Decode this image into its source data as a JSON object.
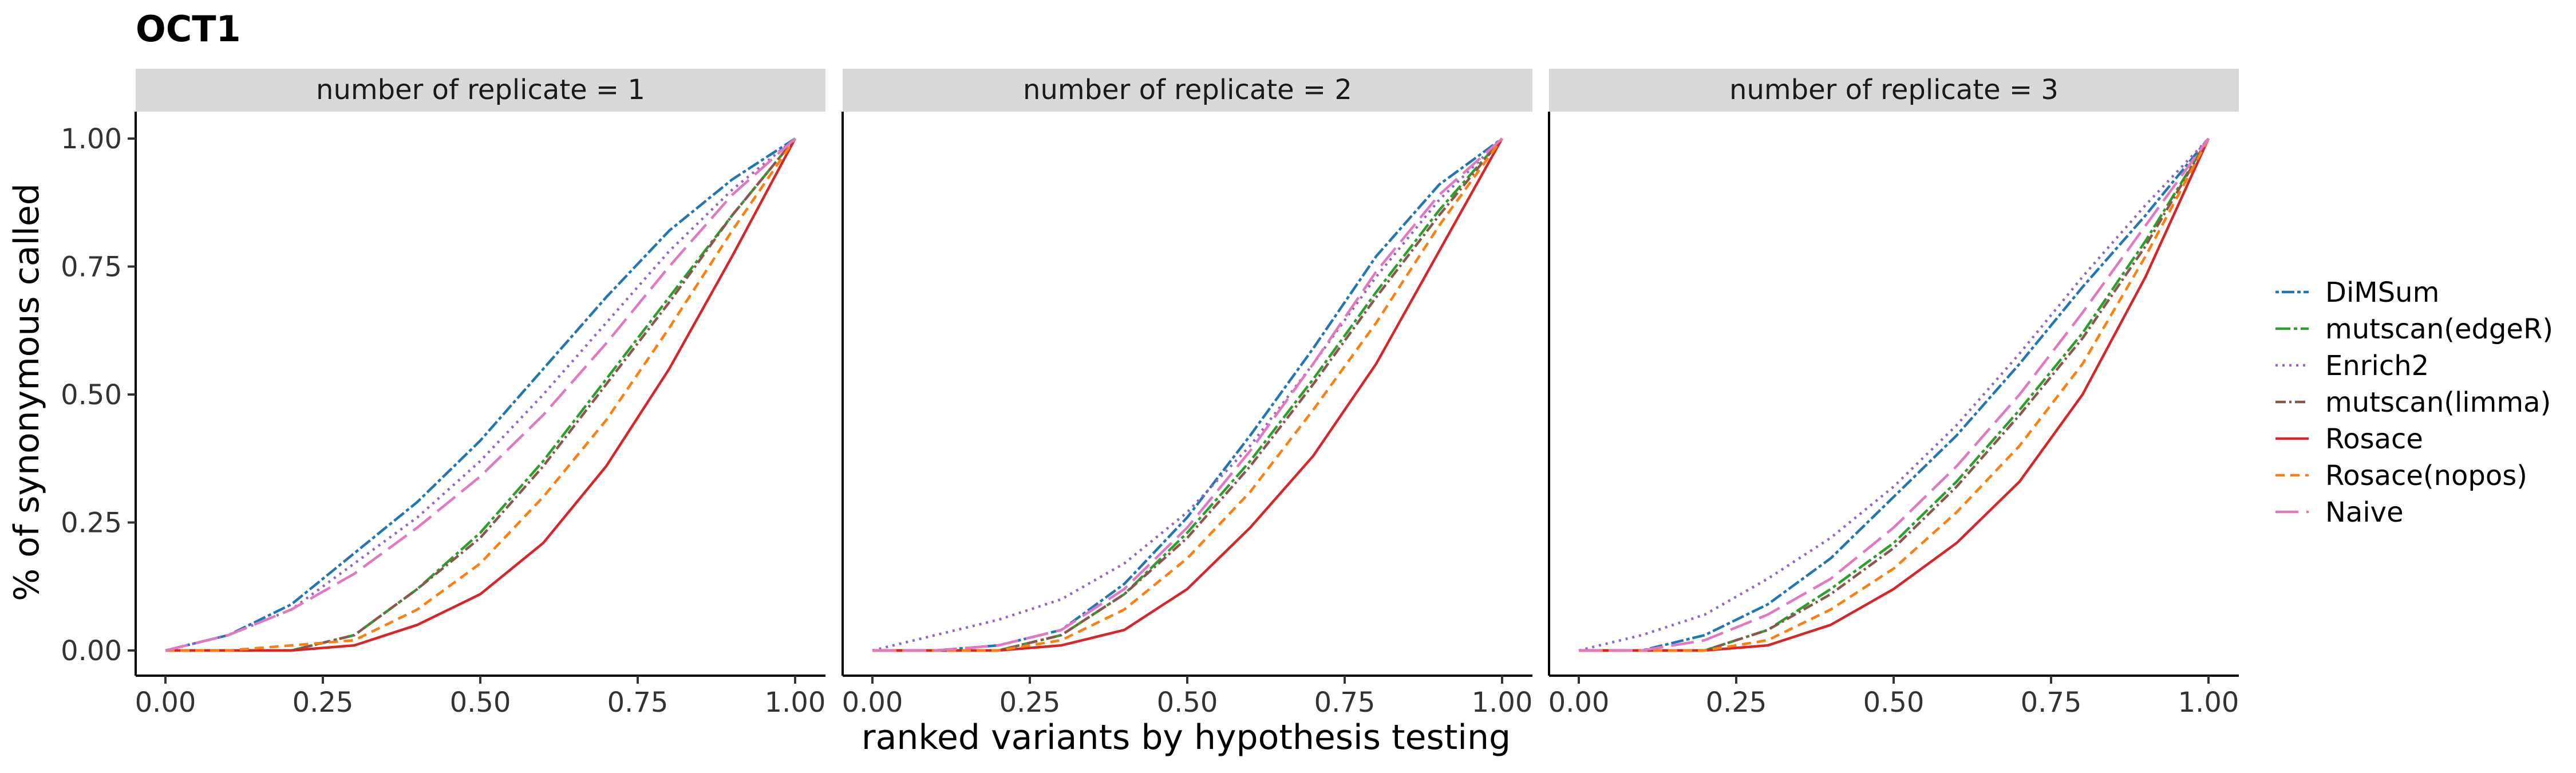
{
  "chart_data": {
    "type": "line",
    "title": "OCT1",
    "xlabel": "ranked variants by hypothesis testing",
    "ylabel": "% of synonymous called",
    "xlim": [
      0,
      1
    ],
    "ylim": [
      0,
      1
    ],
    "x_ticks": [
      "0.00",
      "0.25",
      "0.50",
      "0.75",
      "1.00"
    ],
    "y_ticks": [
      "0.00",
      "0.25",
      "0.50",
      "0.75",
      "1.00"
    ],
    "grid": false,
    "legend_position": "right",
    "x": [
      0,
      0.1,
      0.2,
      0.3,
      0.4,
      0.5,
      0.6,
      0.7,
      0.8,
      0.9,
      1.0
    ],
    "series_styles": [
      {
        "name": "DiMSum",
        "color": "#1f77b4",
        "dash": "6,5,22,5"
      },
      {
        "name": "mutscan(edgeR)",
        "color": "#2ca02c",
        "dash": "26,6,6,6"
      },
      {
        "name": "Enrich2",
        "color": "#9467bd",
        "dash": "4,8"
      },
      {
        "name": "mutscan(limma)",
        "color": "#8c564b",
        "dash": "18,6,4,6"
      },
      {
        "name": "Rosace",
        "color": "#d62728",
        "dash": ""
      },
      {
        "name": "Rosace(nopos)",
        "color": "#ff7f0e",
        "dash": "16,10"
      },
      {
        "name": "Naive",
        "color": "#e377c2",
        "dash": "40,14"
      }
    ],
    "panels": [
      {
        "label": "number of replicate = 1",
        "series": [
          {
            "name": "DiMSum",
            "values": [
              0,
              0.03,
              0.09,
              0.19,
              0.29,
              0.41,
              0.55,
              0.69,
              0.82,
              0.92,
              1.0
            ]
          },
          {
            "name": "mutscan(edgeR)",
            "values": [
              0,
              0,
              0,
              0.03,
              0.12,
              0.23,
              0.37,
              0.53,
              0.69,
              0.85,
              1.0
            ]
          },
          {
            "name": "Enrich2",
            "values": [
              0,
              0.03,
              0.08,
              0.17,
              0.26,
              0.37,
              0.5,
              0.64,
              0.78,
              0.9,
              1.0
            ]
          },
          {
            "name": "mutscan(limma)",
            "values": [
              0,
              0,
              0,
              0.03,
              0.12,
              0.22,
              0.36,
              0.52,
              0.68,
              0.85,
              1.0
            ]
          },
          {
            "name": "Rosace",
            "values": [
              0,
              0,
              0,
              0.01,
              0.05,
              0.11,
              0.21,
              0.36,
              0.55,
              0.77,
              1.0
            ]
          },
          {
            "name": "Rosace(nopos)",
            "values": [
              0,
              0,
              0.01,
              0.02,
              0.08,
              0.17,
              0.3,
              0.45,
              0.63,
              0.82,
              1.0
            ]
          },
          {
            "name": "Naive",
            "values": [
              0,
              0.03,
              0.08,
              0.15,
              0.24,
              0.34,
              0.46,
              0.6,
              0.75,
              0.89,
              1.0
            ]
          }
        ]
      },
      {
        "label": "number of replicate = 2",
        "series": [
          {
            "name": "DiMSum",
            "values": [
              0,
              0,
              0.01,
              0.04,
              0.13,
              0.26,
              0.42,
              0.59,
              0.77,
              0.91,
              1.0
            ]
          },
          {
            "name": "mutscan(edgeR)",
            "values": [
              0,
              0,
              0,
              0.03,
              0.11,
              0.23,
              0.37,
              0.53,
              0.7,
              0.86,
              1.0
            ]
          },
          {
            "name": "Enrich2",
            "values": [
              0,
              0.03,
              0.06,
              0.1,
              0.17,
              0.27,
              0.4,
              0.56,
              0.73,
              0.88,
              1.0
            ]
          },
          {
            "name": "mutscan(limma)",
            "values": [
              0,
              0,
              0,
              0.03,
              0.11,
              0.22,
              0.36,
              0.52,
              0.69,
              0.85,
              1.0
            ]
          },
          {
            "name": "Rosace",
            "values": [
              0,
              0,
              0,
              0.01,
              0.04,
              0.12,
              0.24,
              0.38,
              0.56,
              0.78,
              1.0
            ]
          },
          {
            "name": "Rosace(nopos)",
            "values": [
              0,
              0,
              0,
              0.02,
              0.08,
              0.18,
              0.31,
              0.47,
              0.64,
              0.83,
              1.0
            ]
          },
          {
            "name": "Naive",
            "values": [
              0,
              0,
              0.01,
              0.04,
              0.12,
              0.24,
              0.39,
              0.56,
              0.74,
              0.89,
              1.0
            ]
          }
        ]
      },
      {
        "label": "number of replicate = 3",
        "series": [
          {
            "name": "DiMSum",
            "values": [
              0,
              0,
              0.03,
              0.09,
              0.18,
              0.3,
              0.42,
              0.56,
              0.71,
              0.85,
              1.0
            ]
          },
          {
            "name": "mutscan(edgeR)",
            "values": [
              0,
              0,
              0,
              0.04,
              0.12,
              0.21,
              0.33,
              0.47,
              0.62,
              0.8,
              1.0
            ]
          },
          {
            "name": "Enrich2",
            "values": [
              0,
              0.03,
              0.07,
              0.14,
              0.22,
              0.32,
              0.44,
              0.58,
              0.73,
              0.87,
              1.0
            ]
          },
          {
            "name": "mutscan(limma)",
            "values": [
              0,
              0,
              0,
              0.04,
              0.11,
              0.2,
              0.32,
              0.46,
              0.61,
              0.79,
              1.0
            ]
          },
          {
            "name": "Rosace",
            "values": [
              0,
              0,
              0,
              0.01,
              0.05,
              0.12,
              0.21,
              0.33,
              0.5,
              0.73,
              1.0
            ]
          },
          {
            "name": "Rosace(nopos)",
            "values": [
              0,
              0,
              0,
              0.02,
              0.08,
              0.16,
              0.27,
              0.4,
              0.56,
              0.77,
              1.0
            ]
          },
          {
            "name": "Naive",
            "values": [
              0,
              0,
              0.02,
              0.07,
              0.14,
              0.24,
              0.36,
              0.5,
              0.66,
              0.83,
              1.0
            ]
          }
        ]
      }
    ]
  }
}
